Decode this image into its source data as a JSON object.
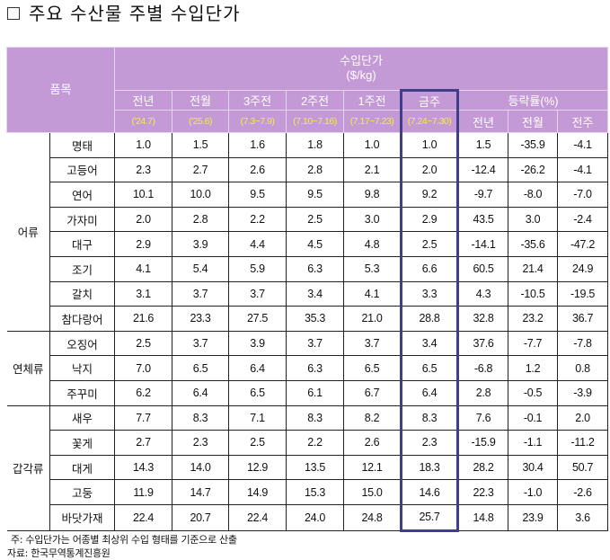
{
  "title": "주요 수산물 주별 수입단가",
  "header": {
    "item_label": "품목",
    "group_label_line1": "수입단가",
    "group_label_line2": "($/kg)",
    "columns": [
      {
        "label": "전년",
        "period": "('24.7)"
      },
      {
        "label": "전월",
        "period": "('25.6)"
      },
      {
        "label": "3주전",
        "period": "(7.3~7.9)"
      },
      {
        "label": "2주전",
        "period": "(7.10~7.16)"
      },
      {
        "label": "1주전",
        "period": "(7.17~7.23)"
      },
      {
        "label": "금주",
        "period": "(7.24~7.30)"
      }
    ],
    "change_label": "등락률(%)",
    "change_columns": [
      "전년",
      "전월",
      "전주"
    ]
  },
  "groups": [
    {
      "category": "어류",
      "rows": [
        {
          "name": "명태",
          "values": [
            "1.0",
            "1.5",
            "1.6",
            "1.8",
            "1.0",
            "1.0"
          ],
          "changes": [
            "1.5",
            "-35.9",
            "-4.1"
          ]
        },
        {
          "name": "고등어",
          "values": [
            "2.3",
            "2.7",
            "2.6",
            "2.8",
            "2.1",
            "2.0"
          ],
          "changes": [
            "-12.4",
            "-26.2",
            "-4.1"
          ]
        },
        {
          "name": "연어",
          "values": [
            "10.1",
            "10.0",
            "9.5",
            "9.5",
            "9.8",
            "9.2"
          ],
          "changes": [
            "-9.7",
            "-8.0",
            "-7.0"
          ]
        },
        {
          "name": "가자미",
          "values": [
            "2.0",
            "2.8",
            "2.2",
            "2.5",
            "3.0",
            "2.9"
          ],
          "changes": [
            "43.5",
            "3.0",
            "-2.4"
          ]
        },
        {
          "name": "대구",
          "values": [
            "2.9",
            "3.9",
            "4.4",
            "4.5",
            "4.8",
            "2.5"
          ],
          "changes": [
            "-14.1",
            "-35.6",
            "-47.2"
          ]
        },
        {
          "name": "조기",
          "values": [
            "4.1",
            "5.4",
            "5.9",
            "6.3",
            "5.3",
            "6.6"
          ],
          "changes": [
            "60.5",
            "21.4",
            "24.9"
          ]
        },
        {
          "name": "갈치",
          "values": [
            "3.1",
            "3.7",
            "3.7",
            "3.4",
            "4.1",
            "3.3"
          ],
          "changes": [
            "4.3",
            "-10.5",
            "-19.5"
          ]
        },
        {
          "name": "참다랑어",
          "values": [
            "21.6",
            "23.3",
            "27.5",
            "35.3",
            "21.0",
            "28.8"
          ],
          "changes": [
            "32.8",
            "23.2",
            "36.7"
          ]
        }
      ]
    },
    {
      "category": "연체류",
      "rows": [
        {
          "name": "오징어",
          "values": [
            "2.5",
            "3.7",
            "3.9",
            "3.7",
            "3.7",
            "3.4"
          ],
          "changes": [
            "37.6",
            "-7.7",
            "-7.8"
          ]
        },
        {
          "name": "낙지",
          "values": [
            "7.0",
            "6.5",
            "6.4",
            "6.3",
            "6.5",
            "6.5"
          ],
          "changes": [
            "-6.8",
            "1.2",
            "0.8"
          ]
        },
        {
          "name": "주꾸미",
          "values": [
            "6.2",
            "6.4",
            "6.5",
            "6.1",
            "6.7",
            "6.4"
          ],
          "changes": [
            "2.8",
            "-0.5",
            "-3.9"
          ]
        }
      ]
    },
    {
      "category": "갑각류",
      "rows": [
        {
          "name": "새우",
          "values": [
            "7.7",
            "8.3",
            "7.1",
            "8.3",
            "8.2",
            "8.3"
          ],
          "changes": [
            "7.6",
            "-0.1",
            "2.0"
          ]
        },
        {
          "name": "꽃게",
          "values": [
            "2.7",
            "2.3",
            "2.5",
            "2.2",
            "2.6",
            "2.3"
          ],
          "changes": [
            "-15.9",
            "-1.1",
            "-11.2"
          ]
        },
        {
          "name": "대게",
          "values": [
            "14.3",
            "14.0",
            "12.9",
            "13.5",
            "12.1",
            "18.3"
          ],
          "changes": [
            "28.2",
            "30.4",
            "50.7"
          ]
        },
        {
          "name": "고둥",
          "values": [
            "11.9",
            "14.7",
            "14.9",
            "15.3",
            "15.0",
            "14.6"
          ],
          "changes": [
            "22.3",
            "-1.0",
            "-2.6"
          ]
        },
        {
          "name": "바닷가재",
          "values": [
            "22.4",
            "20.7",
            "22.4",
            "24.0",
            "24.8",
            "25.7"
          ],
          "changes": [
            "14.8",
            "23.9",
            "3.6"
          ]
        }
      ]
    }
  ],
  "notes": {
    "note": "주: 수입단가는 어종별 최상위 수입 형태를 기준으로 산출",
    "source": "자료: 한국무역통계진흥원"
  },
  "colors": {
    "header_bg": "#c49ad6",
    "header_text": "#ffffff",
    "period_text": "#f5ef3a",
    "highlight_border": "#3f3e86"
  }
}
